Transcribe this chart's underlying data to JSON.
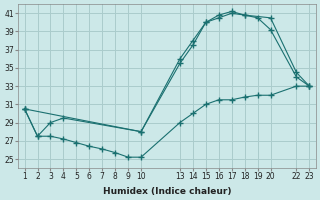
{
  "xlabel": "Humidex (Indice chaleur)",
  "bg_color": "#cce8e8",
  "grid_color": "#aacccc",
  "line_color": "#1a7070",
  "xlim": [
    0.5,
    23.5
  ],
  "ylim": [
    24,
    42
  ],
  "yticks": [
    25,
    27,
    29,
    31,
    33,
    35,
    37,
    39,
    41
  ],
  "xtick_positions": [
    1,
    2,
    3,
    4,
    5,
    6,
    7,
    8,
    9,
    10,
    13,
    14,
    15,
    16,
    17,
    18,
    19,
    20,
    22,
    23
  ],
  "xtick_labels": [
    "1",
    "2",
    "3",
    "4",
    "5",
    "6",
    "7",
    "8",
    "9",
    "10",
    "13",
    "14",
    "15",
    "16",
    "17",
    "18",
    "19",
    "20",
    "22",
    "23"
  ],
  "lines": [
    {
      "x": [
        1,
        2,
        3,
        4,
        5,
        6,
        7,
        8,
        9,
        10,
        13,
        14,
        15,
        16,
        17,
        18,
        19,
        20,
        22,
        23
      ],
      "y": [
        30.5,
        27.5,
        27.5,
        27.2,
        26.8,
        26.4,
        26.1,
        25.7,
        25.2,
        25.2,
        29.0,
        30.0,
        31.0,
        31.5,
        31.5,
        31.8,
        32.0,
        32.0,
        33.0,
        33.0
      ]
    },
    {
      "x": [
        1,
        2,
        3,
        4,
        10,
        13,
        14,
        15,
        16,
        17,
        18,
        19,
        20,
        22,
        23
      ],
      "y": [
        30.5,
        27.5,
        29.0,
        29.5,
        28.0,
        35.5,
        37.5,
        40.0,
        40.5,
        41.0,
        40.8,
        40.5,
        39.2,
        34.0,
        33.0
      ]
    },
    {
      "x": [
        1,
        10,
        13,
        14,
        15,
        16,
        17,
        18,
        20,
        22,
        23
      ],
      "y": [
        30.5,
        28.0,
        36.0,
        38.0,
        40.0,
        40.8,
        41.2,
        40.8,
        40.5,
        34.5,
        33.0
      ]
    }
  ]
}
